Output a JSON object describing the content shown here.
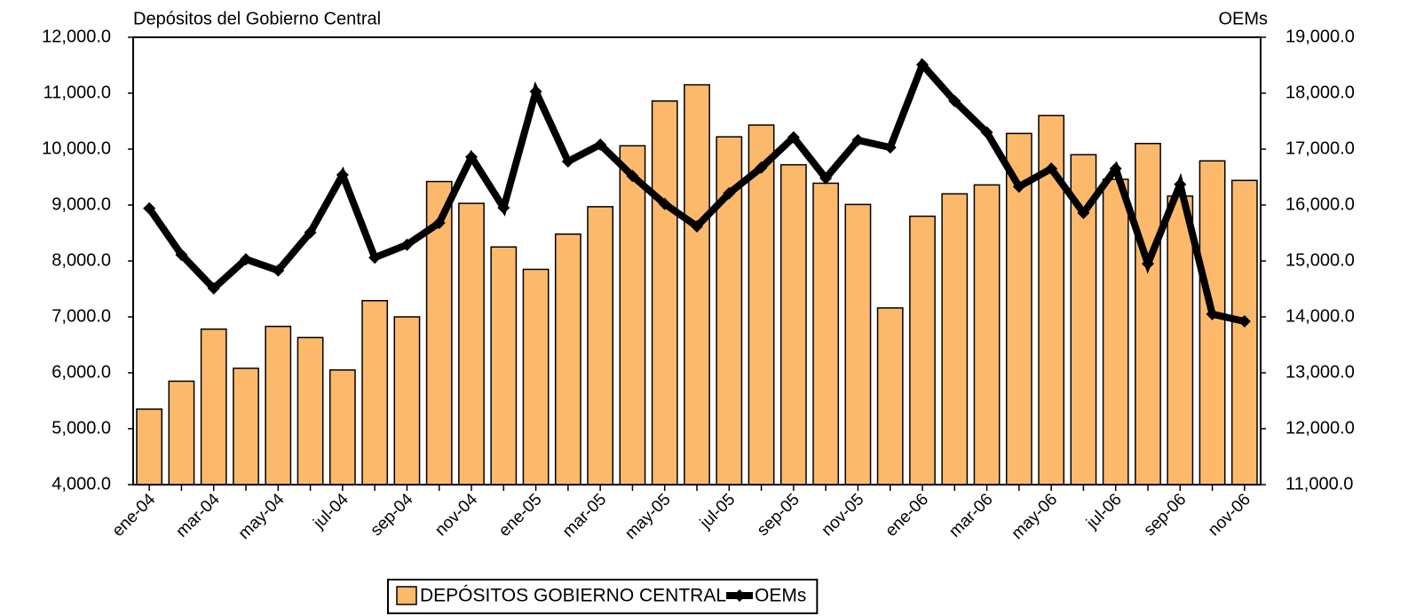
{
  "chart_data": {
    "type": "combo",
    "y_label": "Depósitos del Gobierno Central",
    "y2_label": "OEMs",
    "categories": [
      "ene-04",
      null,
      "mar-04",
      null,
      "may-04",
      null,
      "jul-04",
      null,
      "sep-04",
      null,
      "nov-04",
      null,
      "ene-05",
      null,
      "mar-05",
      null,
      "may-05",
      null,
      "jul-05",
      null,
      "sep-05",
      null,
      "nov-05",
      null,
      "ene-06",
      null,
      "mar-06",
      null,
      "may-06",
      null,
      "jul-06",
      null,
      "sep-06",
      null,
      "nov-06"
    ],
    "series": [
      {
        "name": "DEPÓSITOS GOBIERNO CENTRAL",
        "type": "bar",
        "color": "#fdb96b",
        "values": [
          5350,
          5850,
          6780,
          6080,
          6830,
          6630,
          6050,
          7290,
          7000,
          9420,
          9030,
          8250,
          7850,
          8480,
          8970,
          10060,
          10860,
          11150,
          10220,
          10430,
          9720,
          9390,
          9010,
          7160,
          8800,
          9200,
          9360,
          10280,
          10600,
          9900,
          9460,
          10100,
          9160,
          9790,
          9440
        ]
      },
      {
        "name": "OEMs",
        "type": "line",
        "axis": "y2",
        "color": "#000000",
        "values": [
          15940,
          15110,
          14510,
          15030,
          14830,
          15510,
          16540,
          15060,
          15290,
          15680,
          16860,
          15950,
          18030,
          16780,
          17080,
          16520,
          16020,
          15620,
          16210,
          16670,
          17210,
          16480,
          17160,
          17030,
          18510,
          17860,
          17300,
          16330,
          16650,
          15860,
          16650,
          14950,
          16370,
          14050,
          13920
        ]
      }
    ],
    "ylim": [
      4000,
      12000
    ],
    "yticks": [
      {
        "value": 4000,
        "label": "4,000.0"
      },
      {
        "value": 5000,
        "label": "5,000.0"
      },
      {
        "value": 6000,
        "label": "6,000.0"
      },
      {
        "value": 7000,
        "label": "7,000.0"
      },
      {
        "value": 8000,
        "label": "8,000.0"
      },
      {
        "value": 9000,
        "label": "9,000.0"
      },
      {
        "value": 10000,
        "label": "10,000.0"
      },
      {
        "value": 11000,
        "label": "11,000.0"
      },
      {
        "value": 12000,
        "label": "12,000.0"
      }
    ],
    "y2lim": [
      11000,
      19000
    ],
    "y2ticks": [
      {
        "value": 11000,
        "label": "11,000.0"
      },
      {
        "value": 12000,
        "label": "12,000.0"
      },
      {
        "value": 13000,
        "label": "13,000.0"
      },
      {
        "value": 14000,
        "label": "14,000.0"
      },
      {
        "value": 15000,
        "label": "15,000.0"
      },
      {
        "value": 16000,
        "label": "16,000.0"
      },
      {
        "value": 17000,
        "label": "17,000.0"
      },
      {
        "value": 18000,
        "label": "18,000.0"
      },
      {
        "value": 19000,
        "label": "19,000.0"
      }
    ],
    "grid": false,
    "legend": "bottom"
  }
}
